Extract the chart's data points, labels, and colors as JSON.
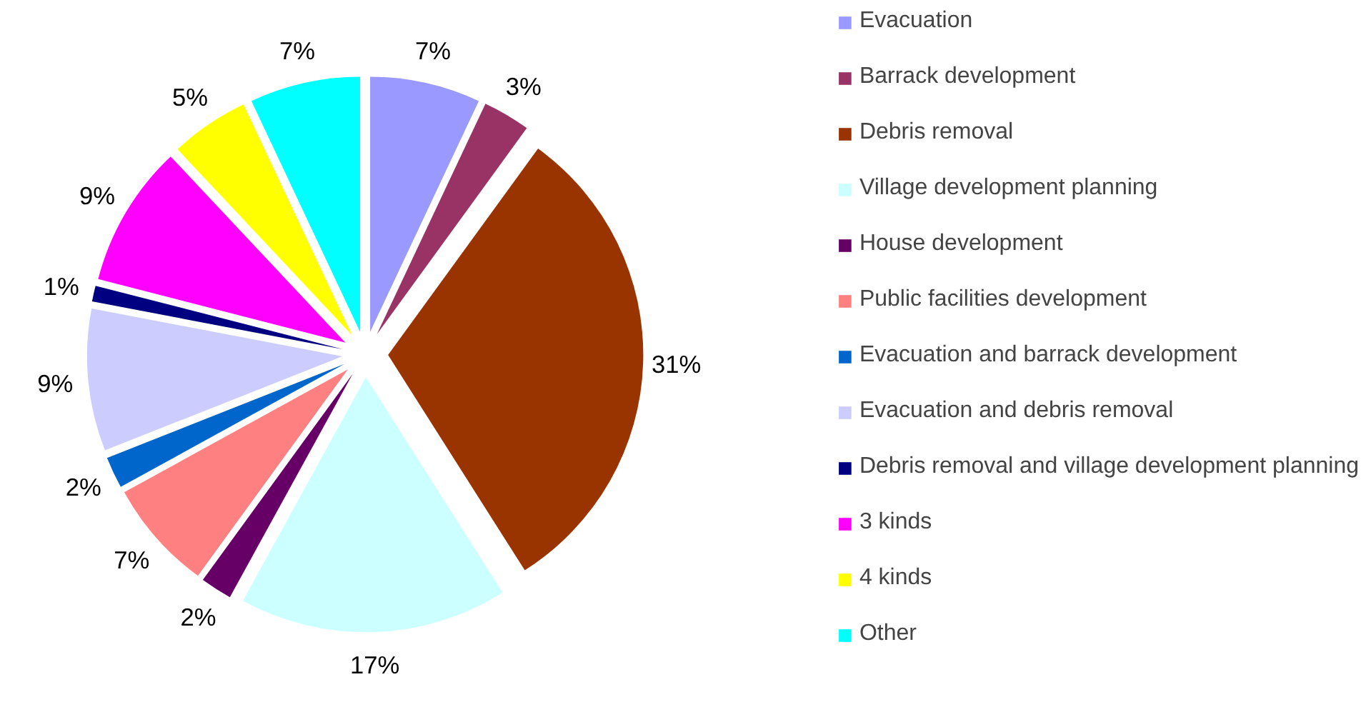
{
  "chart_data": {
    "type": "pie",
    "categories": [
      "Evacuation",
      "Barrack development",
      "Debris removal",
      "Village development planning",
      "House development",
      "Public facilities development",
      "Evacuation and barrack development",
      "Evacuation and debris removal",
      "Debris removal and village development planning",
      "3 kinds",
      "4 kinds",
      "Other"
    ],
    "values": [
      7,
      3,
      31,
      17,
      2,
      7,
      2,
      9,
      1,
      9,
      5,
      7
    ],
    "value_labels": [
      "7%",
      "3%",
      "31%",
      "17%",
      "2%",
      "7%",
      "2%",
      "9%",
      "1%",
      "9%",
      "5%",
      "7%"
    ],
    "colors": [
      "#9999ff",
      "#993366",
      "#993300",
      "#ccffff",
      "#660066",
      "#ff8080",
      "#0066cc",
      "#ccccff",
      "#000080",
      "#ff00ff",
      "#ffff00",
      "#00ffff"
    ],
    "legend": "right"
  }
}
